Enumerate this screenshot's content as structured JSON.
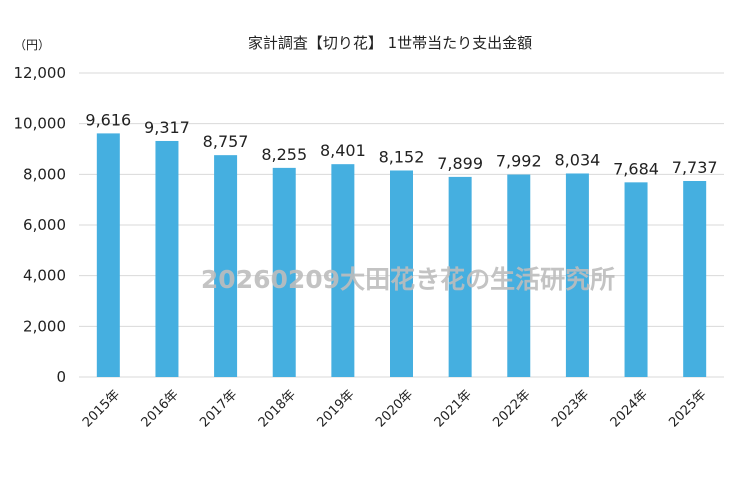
{
  "chart_data": {
    "type": "bar",
    "title": "家計調査【切り花】 1世帯当たり支出金額",
    "ylabel": "（円）",
    "xlabel": "",
    "categories": [
      "2015年",
      "2016年",
      "2017年",
      "2018年",
      "2019年",
      "2020年",
      "2021年",
      "2022年",
      "2023年",
      "2024年",
      "2025年"
    ],
    "values": [
      9616,
      9317,
      8757,
      8255,
      8401,
      8152,
      7899,
      7992,
      8034,
      7684,
      7737
    ],
    "value_labels": [
      "9,616",
      "9,317",
      "8,757",
      "8,255",
      "8,401",
      "8,152",
      "7,899",
      "7,992",
      "8,034",
      "7,684",
      "7,737"
    ],
    "ylim": [
      0,
      12000
    ],
    "yticks": [
      0,
      2000,
      4000,
      6000,
      8000,
      10000,
      12000
    ],
    "ytick_labels": [
      "0",
      "2,000",
      "4,000",
      "6,000",
      "8,000",
      "10,000",
      "12,000"
    ],
    "grid": true,
    "legend": "none",
    "bar_color": "#45afe0",
    "watermark": "20260209大田花き花の生活研究所"
  }
}
